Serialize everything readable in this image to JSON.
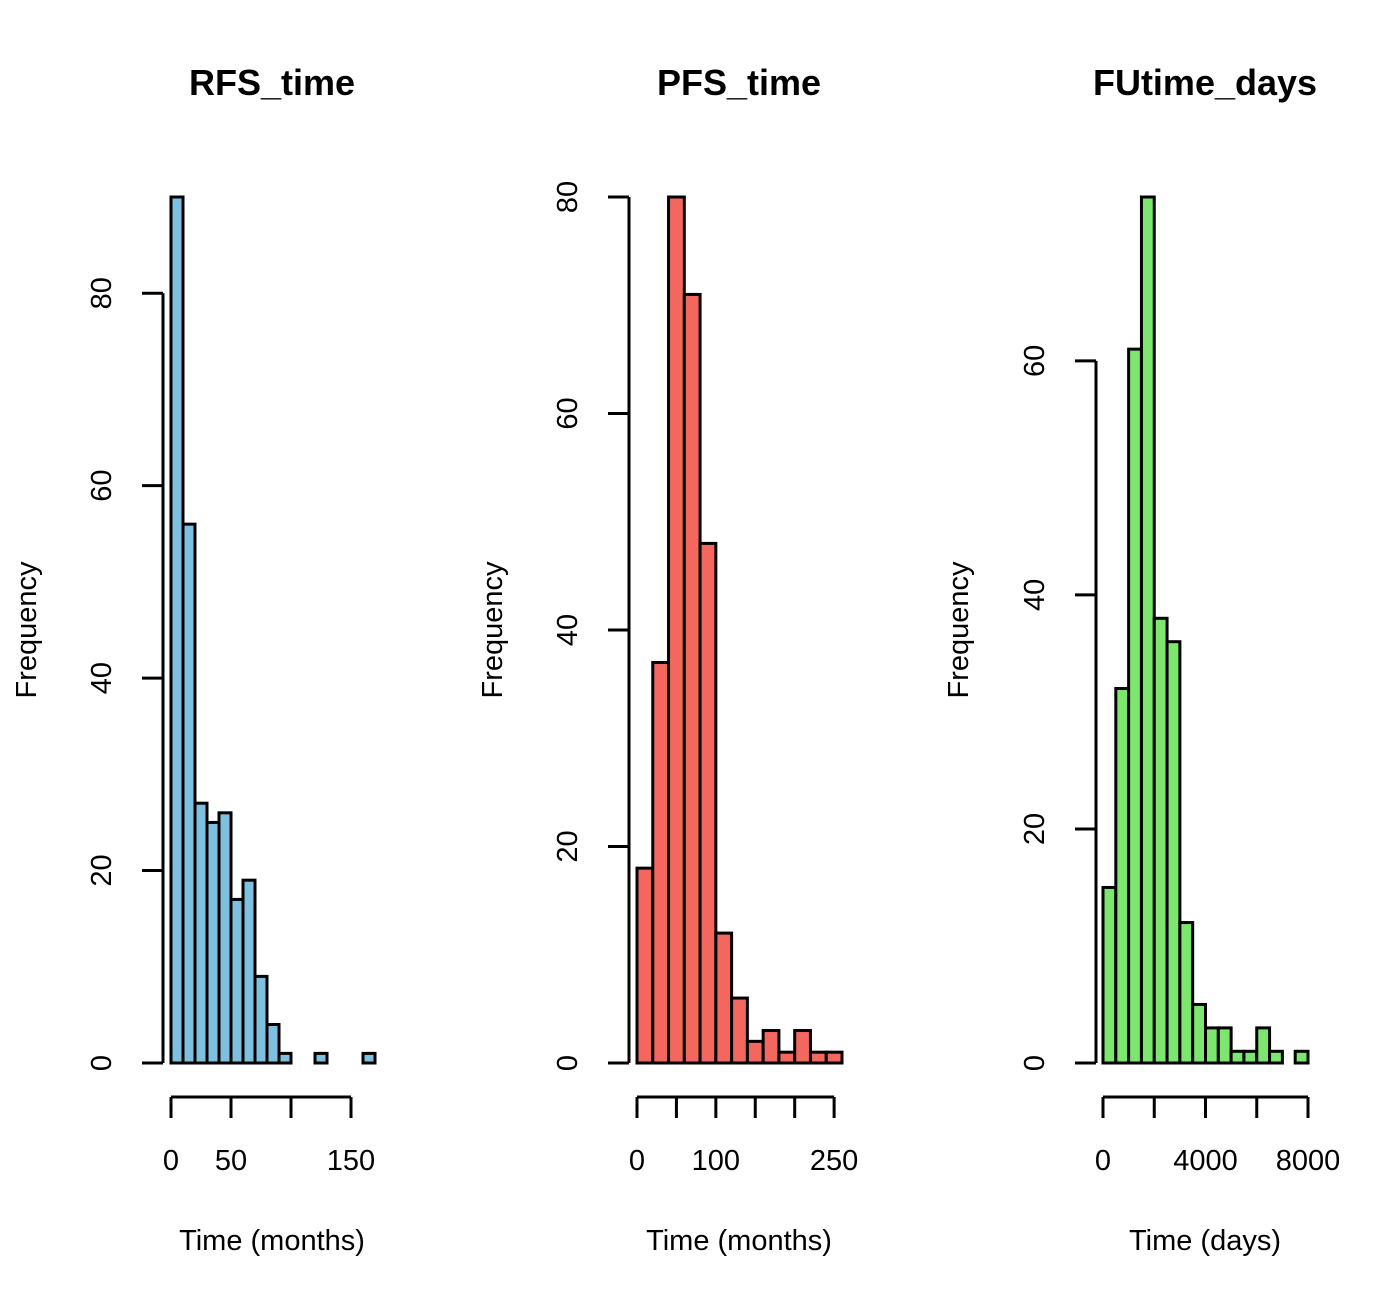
{
  "chart_data": [
    {
      "type": "bar",
      "title": "RFS_time",
      "xlabel": "Time (months)",
      "ylabel": "Frequency",
      "bar_color": "#7ec0e0",
      "bin_width": 10,
      "bins_start": 0,
      "values": [
        90,
        56,
        27,
        25,
        26,
        17,
        19,
        9,
        4,
        1,
        0,
        0,
        1,
        0,
        0,
        0,
        1
      ],
      "xlim": [
        0,
        170
      ],
      "ylim": [
        0,
        90
      ],
      "xticks": [
        0,
        50,
        100,
        150
      ],
      "xtick_labels": [
        "0",
        "50",
        "",
        "150"
      ],
      "yticks": [
        0,
        20,
        40,
        60,
        80
      ],
      "ytick_labels": [
        "0",
        "20",
        "40",
        "60",
        "80"
      ]
    },
    {
      "type": "bar",
      "title": "PFS_time",
      "xlabel": "Time (months)",
      "ylabel": "Frequency",
      "bar_color": "#f4675e",
      "bin_width": 20,
      "bins_start": 0,
      "values": [
        18,
        37,
        80,
        71,
        48,
        12,
        6,
        2,
        3,
        1,
        3,
        1,
        1
      ],
      "xlim": [
        0,
        260
      ],
      "ylim": [
        0,
        80
      ],
      "xticks": [
        0,
        50,
        100,
        150,
        200,
        250
      ],
      "xtick_labels": [
        "0",
        "",
        "100",
        "",
        "",
        "250"
      ],
      "yticks": [
        0,
        20,
        40,
        60,
        80
      ],
      "ytick_labels": [
        "0",
        "20",
        "40",
        "60",
        "80"
      ]
    },
    {
      "type": "bar",
      "title": "FUtime_days",
      "xlabel": "Time (days)",
      "ylabel": "Frequency",
      "bar_color": "#7de66e",
      "bin_width": 500,
      "bins_start": 0,
      "values": [
        15,
        32,
        61,
        74,
        38,
        36,
        12,
        5,
        3,
        3,
        1,
        1,
        3,
        1,
        0,
        1
      ],
      "xlim": [
        0,
        8000
      ],
      "ylim": [
        0,
        74
      ],
      "xticks": [
        0,
        2000,
        4000,
        6000,
        8000
      ],
      "xtick_labels": [
        "0",
        "",
        "4000",
        "",
        "8000"
      ],
      "yticks": [
        0,
        20,
        40,
        60
      ],
      "ytick_labels": [
        "0",
        "20",
        "40",
        "60"
      ]
    }
  ]
}
